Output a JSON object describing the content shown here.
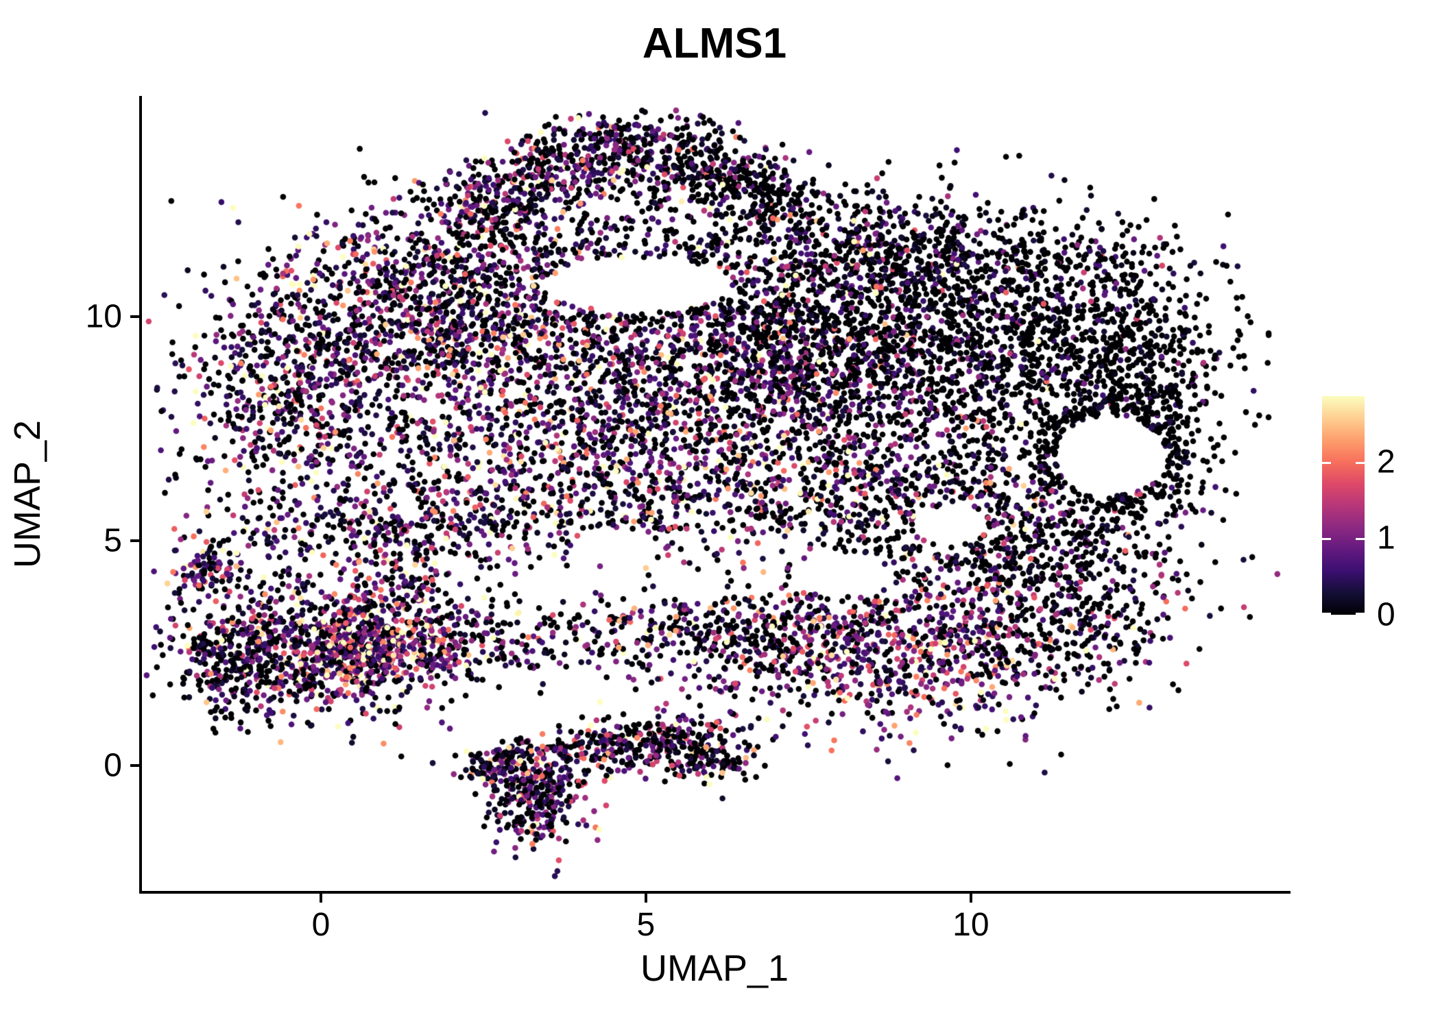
{
  "title": "ALMS1",
  "axes": {
    "x": {
      "label": "UMAP_1",
      "ticks": [
        0,
        5,
        10
      ],
      "range": [
        -2.774,
        14.897
      ]
    },
    "y": {
      "label": "UMAP_2",
      "ticks": [
        0,
        5,
        10
      ],
      "range": [
        -2.829,
        14.911
      ]
    }
  },
  "colorbar": {
    "ticks": [
      0,
      1,
      2
    ],
    "max_value": 2.86
  },
  "colors": {
    "background": "#ffffff",
    "axis": "#000000",
    "text": "#000000"
  },
  "chart_data": {
    "type": "scatter",
    "title": "ALMS1",
    "xlabel": "UMAP_1",
    "ylabel": "UMAP_2",
    "x_ticks": [
      0,
      5,
      10
    ],
    "y_ticks": [
      0,
      5,
      10
    ],
    "xlim": [
      -2.774,
      14.897
    ],
    "ylim": [
      -2.829,
      14.911
    ],
    "grid": false,
    "legend_position": "right",
    "color_scale": {
      "name": "magma-like",
      "domain": [
        0,
        2.86
      ],
      "legend_ticks": [
        0,
        1,
        2
      ],
      "anchors": [
        [
          0.0,
          0,
          0,
          4
        ],
        [
          0.1,
          20,
          14,
          54
        ],
        [
          0.2,
          59,
          15,
          112
        ],
        [
          0.3,
          100,
          26,
          128
        ],
        [
          0.4,
          140,
          41,
          129
        ],
        [
          0.5,
          183,
          55,
          121
        ],
        [
          0.6,
          222,
          73,
          104
        ],
        [
          0.7,
          247,
          112,
          92
        ],
        [
          0.8,
          254,
          159,
          109
        ],
        [
          0.9,
          254,
          207,
          146
        ],
        [
          1.0,
          252,
          253,
          191
        ]
      ]
    },
    "n_points_approx": 13500,
    "point_radius_px": 4.3,
    "seed": 42,
    "holes": [
      {
        "cx": 12.15,
        "cy": 6.9,
        "rx": 0.85,
        "ry": 0.9
      },
      {
        "cx": 9.7,
        "cy": 5.35,
        "rx": 0.55,
        "ry": 0.45
      },
      {
        "cx": 4.9,
        "cy": 10.7,
        "rx": 1.4,
        "ry": 0.62
      },
      {
        "cx": 4.5,
        "cy": 4.9,
        "rx": 0.6,
        "ry": 0.4
      },
      {
        "cx": 8.0,
        "cy": 4.2,
        "rx": 0.75,
        "ry": 0.45
      }
    ],
    "clusters": [
      {
        "name": "top_wing_left",
        "shape": "gauss",
        "n": 420,
        "cx": 3.2,
        "cy": 13.0,
        "sx": 1.05,
        "sy": 0.42,
        "rot": 33,
        "zero_frac": 0.38,
        "mean_expr": 0.85,
        "dist": "exp"
      },
      {
        "name": "top_wing_right",
        "shape": "gauss",
        "n": 380,
        "cx": 5.3,
        "cy": 13.55,
        "sx": 0.95,
        "sy": 0.45,
        "rot": -12,
        "zero_frac": 0.52,
        "mean_expr": 0.7,
        "dist": "exp"
      },
      {
        "name": "top_rim_right",
        "shape": "gauss",
        "n": 150,
        "cx": 6.7,
        "cy": 12.8,
        "sx": 0.55,
        "sy": 0.33,
        "rot": -28,
        "zero_frac": 0.62,
        "mean_expr": 0.5,
        "dist": "exp"
      },
      {
        "name": "upper_mid_sparse",
        "shape": "gauss",
        "n": 200,
        "cx": 4.9,
        "cy": 11.6,
        "sx": 1.5,
        "sy": 0.75,
        "rot": 0,
        "zero_frac": 0.45,
        "mean_expr": 0.8,
        "dist": "exp"
      },
      {
        "name": "topleft_lobe",
        "shape": "gauss",
        "n": 780,
        "cx": 1.6,
        "cy": 10.5,
        "sx": 1.2,
        "sy": 1.05,
        "rot": 0,
        "zero_frac": 0.32,
        "mean_expr": 1.0,
        "dist": "exp"
      },
      {
        "name": "left_edge",
        "shape": "gauss",
        "n": 620,
        "cx": -0.5,
        "cy": 8.2,
        "sx": 0.8,
        "sy": 1.4,
        "rot": 0,
        "zero_frac": 0.36,
        "mean_expr": 0.95,
        "dist": "exp"
      },
      {
        "name": "central_mass",
        "shape": "gauss",
        "n": 1350,
        "cx": 3.7,
        "cy": 8.8,
        "sx": 1.9,
        "sy": 1.55,
        "rot": 0,
        "zero_frac": 0.36,
        "mean_expr": 0.95,
        "dist": "exp"
      },
      {
        "name": "center_right_dense",
        "shape": "gauss",
        "n": 1550,
        "cx": 7.3,
        "cy": 9.2,
        "sx": 1.6,
        "sy": 1.45,
        "rot": 0,
        "zero_frac": 0.46,
        "mean_expr": 0.8,
        "dist": "exp"
      },
      {
        "name": "right_black",
        "shape": "gauss",
        "n": 1150,
        "cx": 10.3,
        "cy": 9.4,
        "sx": 1.55,
        "sy": 1.25,
        "rot": 0,
        "zero_frac": 0.72,
        "mean_expr": 0.45,
        "dist": "exp"
      },
      {
        "name": "far_right_rim",
        "shape": "gauss",
        "n": 430,
        "cx": 12.6,
        "cy": 8.1,
        "sx": 0.65,
        "sy": 1.5,
        "rot": 0,
        "zero_frac": 0.8,
        "mean_expr": 0.35,
        "dist": "exp"
      },
      {
        "name": "hole_ring",
        "shape": "ring",
        "n": 210,
        "cx": 12.15,
        "cy": 6.9,
        "r": 1.02,
        "asp_y": 1.05,
        "thick": 0.15,
        "zero_frac": 0.85,
        "mean_expr": 0.3,
        "dist": "exp"
      },
      {
        "name": "mid_band",
        "shape": "gauss",
        "n": 700,
        "cx": 4.6,
        "cy": 6.1,
        "sx": 2.5,
        "sy": 0.8,
        "rot": 0,
        "zero_frac": 0.36,
        "mean_expr": 1.0,
        "dist": "exp"
      },
      {
        "name": "band_right",
        "shape": "gauss",
        "n": 480,
        "cx": 9.3,
        "cy": 5.6,
        "sx": 1.35,
        "sy": 0.9,
        "rot": 0,
        "zero_frac": 0.5,
        "mean_expr": 0.8,
        "dist": "exp"
      },
      {
        "name": "right_lower",
        "shape": "gauss",
        "n": 430,
        "cx": 11.2,
        "cy": 4.6,
        "sx": 1.1,
        "sy": 0.95,
        "rot": 0,
        "zero_frac": 0.55,
        "mean_expr": 0.7,
        "dist": "exp"
      },
      {
        "name": "bottom_right_colorful",
        "shape": "gauss",
        "n": 780,
        "cx": 9.0,
        "cy": 2.5,
        "sx": 1.5,
        "sy": 0.85,
        "rot": 0,
        "zero_frac": 0.28,
        "mean_expr": 1.25,
        "dist": "gamma"
      },
      {
        "name": "bottom_right_ext",
        "shape": "gauss",
        "n": 270,
        "cx": 6.8,
        "cy": 2.9,
        "sx": 1.05,
        "sy": 0.6,
        "rot": 0,
        "zero_frac": 0.4,
        "mean_expr": 1.0,
        "dist": "exp"
      },
      {
        "name": "bridge_sparse",
        "shape": "gauss",
        "n": 220,
        "cx": 4.3,
        "cy": 2.9,
        "sx": 1.5,
        "sy": 0.5,
        "rot": 0,
        "zero_frac": 0.4,
        "mean_expr": 1.0,
        "dist": "exp"
      },
      {
        "name": "left_cluster",
        "shape": "gauss",
        "n": 850,
        "cx": 0.0,
        "cy": 2.7,
        "sx": 1.15,
        "sy": 0.78,
        "rot": 0,
        "zero_frac": 0.26,
        "mean_expr": 1.1,
        "dist": "exp"
      },
      {
        "name": "left_cluster_hot",
        "shape": "gauss",
        "n": 270,
        "cx": 0.65,
        "cy": 2.5,
        "sx": 0.5,
        "sy": 0.45,
        "rot": 0,
        "zero_frac": 0.12,
        "mean_expr": 1.6,
        "dist": "gamma"
      },
      {
        "name": "left_dark_edge",
        "shape": "gauss",
        "n": 160,
        "cx": -1.35,
        "cy": 2.2,
        "sx": 0.35,
        "sy": 0.5,
        "rot": 0,
        "zero_frac": 0.55,
        "mean_expr": 0.5,
        "dist": "exp"
      },
      {
        "name": "left_tail_up",
        "shape": "gauss",
        "n": 90,
        "cx": -1.75,
        "cy": 4.3,
        "sx": 0.25,
        "sy": 0.35,
        "rot": 0,
        "zero_frac": 0.3,
        "mean_expr": 0.9,
        "dist": "exp"
      },
      {
        "name": "left_spray",
        "shape": "gauss",
        "n": 130,
        "cx": 1.9,
        "cy": 2.6,
        "sx": 0.55,
        "sy": 0.35,
        "rot": 0,
        "zero_frac": 0.28,
        "mean_expr": 1.3,
        "dist": "gamma"
      },
      {
        "name": "bottom_knot",
        "shape": "gauss",
        "n": 280,
        "cx": 3.35,
        "cy": -0.7,
        "sx": 0.42,
        "sy": 0.5,
        "rot": 0,
        "zero_frac": 0.3,
        "mean_expr": 0.9,
        "dist": "exp"
      },
      {
        "name": "bottom_arm",
        "shape": "gauss",
        "n": 320,
        "cx": 4.6,
        "cy": 0.45,
        "sx": 1.0,
        "sy": 0.28,
        "rot": 10,
        "zero_frac": 0.36,
        "mean_expr": 0.9,
        "dist": "exp"
      },
      {
        "name": "bottom_arm_left",
        "shape": "gauss",
        "n": 90,
        "cx": 2.75,
        "cy": -0.05,
        "sx": 0.3,
        "sy": 0.25,
        "rot": 0,
        "zero_frac": 0.35,
        "mean_expr": 0.9,
        "dist": "exp"
      },
      {
        "name": "bottom_right_clump",
        "shape": "gauss",
        "n": 150,
        "cx": 5.9,
        "cy": 0.2,
        "sx": 0.45,
        "sy": 0.35,
        "rot": 0,
        "zero_frac": 0.42,
        "mean_expr": 0.9,
        "dist": "exp"
      },
      {
        "name": "lower_left_band",
        "shape": "gauss",
        "n": 260,
        "cx": 1.2,
        "cy": 5.2,
        "sx": 1.1,
        "sy": 0.5,
        "rot": 0,
        "zero_frac": 0.36,
        "mean_expr": 0.9,
        "dist": "exp"
      },
      {
        "name": "connect_trail",
        "shape": "gauss",
        "n": 90,
        "cx": 1.3,
        "cy": 3.9,
        "sx": 0.45,
        "sy": 0.5,
        "rot": 0,
        "zero_frac": 0.33,
        "mean_expr": 1.0,
        "dist": "exp"
      },
      {
        "name": "br_corner_sparse",
        "shape": "gauss",
        "n": 140,
        "cx": 11.6,
        "cy": 2.9,
        "sx": 0.7,
        "sy": 0.6,
        "rot": 0,
        "zero_frac": 0.6,
        "mean_expr": 0.6,
        "dist": "exp"
      },
      {
        "name": "top_right_band",
        "shape": "gauss",
        "n": 300,
        "cx": 10.4,
        "cy": 11.3,
        "sx": 1.2,
        "sy": 0.6,
        "rot": 0,
        "zero_frac": 0.65,
        "mean_expr": 0.5,
        "dist": "exp"
      },
      {
        "name": "top_mid_band",
        "shape": "gauss",
        "n": 280,
        "cx": 8.3,
        "cy": 11.7,
        "sx": 1.0,
        "sy": 0.6,
        "rot": 0,
        "zero_frac": 0.5,
        "mean_expr": 0.7,
        "dist": "exp"
      }
    ]
  }
}
